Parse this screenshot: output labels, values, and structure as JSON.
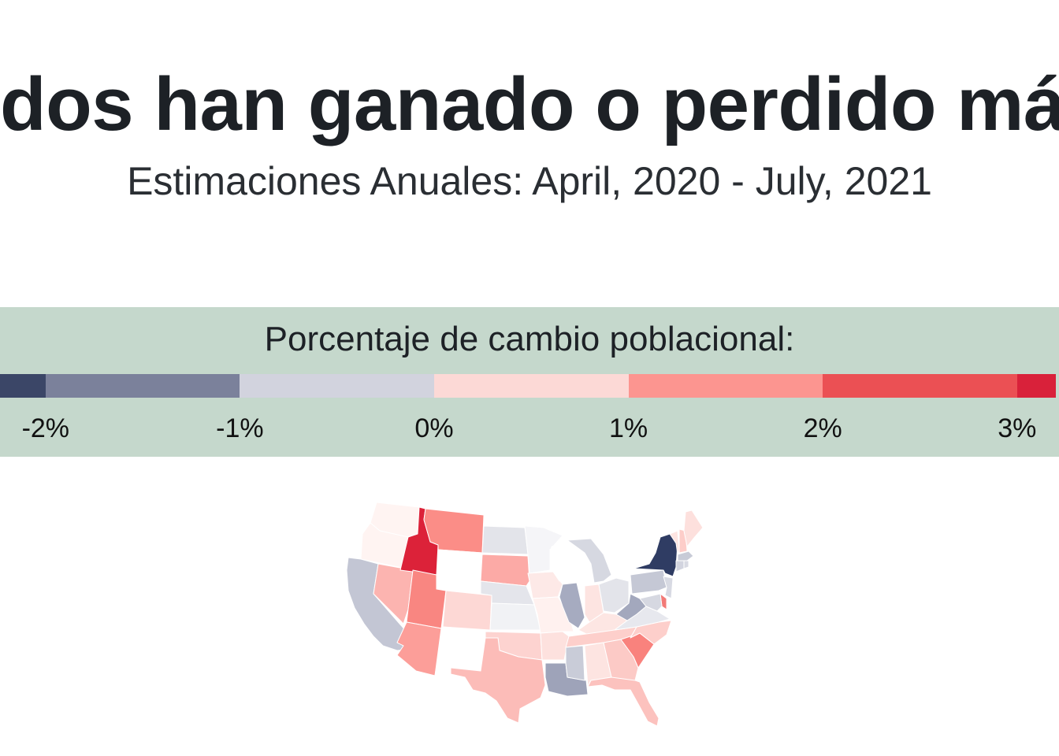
{
  "title": "dos han ganado o perdido más h",
  "subtitle": "Estimaciones Anuales: April, 2020 - July, 2021",
  "legend": {
    "title": "Porcentaje de cambio poblacional:",
    "ticks": [
      {
        "value": -2,
        "label": "-2%"
      },
      {
        "value": -1,
        "label": "-1%"
      },
      {
        "value": 0,
        "label": "0%"
      },
      {
        "value": 1,
        "label": "1%"
      },
      {
        "value": 2,
        "label": "2%"
      },
      {
        "value": 3,
        "label": "3%"
      }
    ],
    "bins": [
      {
        "from": -2.3,
        "to": -2,
        "color": "#3b4667"
      },
      {
        "from": -2,
        "to": -1,
        "color": "#7b819b"
      },
      {
        "from": -1,
        "to": 0,
        "color": "#d2d3de"
      },
      {
        "from": 0,
        "to": 1,
        "color": "#fcd9d6"
      },
      {
        "from": 1,
        "to": 2,
        "color": "#fc9590"
      },
      {
        "from": 2,
        "to": 3,
        "color": "#eb5054"
      },
      {
        "from": 3,
        "to": 3.2,
        "color": "#d9213a"
      }
    ]
  },
  "map_data": {
    "states": [
      {
        "id": "WA",
        "color": "#fff4f2"
      },
      {
        "id": "OR",
        "color": "#fff4f2"
      },
      {
        "id": "CA",
        "color": "#c3c6d4"
      },
      {
        "id": "NV",
        "color": "#fcb4b0"
      },
      {
        "id": "ID",
        "color": "#dc2239"
      },
      {
        "id": "MT",
        "color": "#fb8d87"
      },
      {
        "id": "WY",
        "color": "#ffffff"
      },
      {
        "id": "UT",
        "color": "#f98681"
      },
      {
        "id": "AZ",
        "color": "#fc9e99"
      },
      {
        "id": "CO",
        "color": "#fdd8d5"
      },
      {
        "id": "NM",
        "color": "#ffffff"
      },
      {
        "id": "ND",
        "color": "#e3e4ea"
      },
      {
        "id": "SD",
        "color": "#fcaaa6"
      },
      {
        "id": "NE",
        "color": "#e4e5eb"
      },
      {
        "id": "KS",
        "color": "#f1f2f5"
      },
      {
        "id": "OK",
        "color": "#fdd3d0"
      },
      {
        "id": "TX",
        "color": "#fcbcb8"
      },
      {
        "id": "MN",
        "color": "#f5f5f8"
      },
      {
        "id": "IA",
        "color": "#fde9e7"
      },
      {
        "id": "MO",
        "color": "#fff1ef"
      },
      {
        "id": "AR",
        "color": "#fde1de"
      },
      {
        "id": "LA",
        "color": "#9ea3b9"
      },
      {
        "id": "WI",
        "color": "#ffffff"
      },
      {
        "id": "IL",
        "color": "#a6abc0"
      },
      {
        "id": "MI",
        "color": "#d6d8e1"
      },
      {
        "id": "IN",
        "color": "#fde4e1"
      },
      {
        "id": "OH",
        "color": "#e3e4ea"
      },
      {
        "id": "KY",
        "color": "#fde6e3"
      },
      {
        "id": "TN",
        "color": "#fdcfcb"
      },
      {
        "id": "MS",
        "color": "#c9ccd8"
      },
      {
        "id": "AL",
        "color": "#fde4e1"
      },
      {
        "id": "GA",
        "color": "#fccac6"
      },
      {
        "id": "FL",
        "color": "#fcc2be"
      },
      {
        "id": "SC",
        "color": "#f9827d"
      },
      {
        "id": "NC",
        "color": "#fdcfcb"
      },
      {
        "id": "VA",
        "color": "#e7e8ee"
      },
      {
        "id": "WV",
        "color": "#a3a8bd"
      },
      {
        "id": "PA",
        "color": "#c5c8d5"
      },
      {
        "id": "NY",
        "color": "#2f3c63"
      },
      {
        "id": "NJ",
        "color": "#d8dae3"
      },
      {
        "id": "DE",
        "color": "#f27a77"
      },
      {
        "id": "MD",
        "color": "#d6d8e1"
      },
      {
        "id": "VT",
        "color": "#fde4e1"
      },
      {
        "id": "NH",
        "color": "#fdcdc9"
      },
      {
        "id": "ME",
        "color": "#fde0dd"
      },
      {
        "id": "MA",
        "color": "#c8cbd7"
      },
      {
        "id": "CT",
        "color": "#d2d4df"
      },
      {
        "id": "RI",
        "color": "#d8dae3"
      }
    ]
  }
}
